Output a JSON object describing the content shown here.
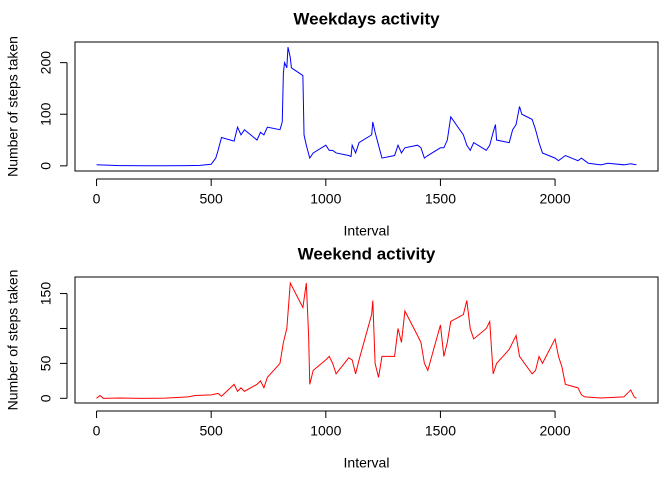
{
  "chart_data": [
    {
      "type": "line",
      "title": "Weekdays activity",
      "xlabel": "Interval",
      "ylabel": "Number of steps taken",
      "color": "#0000ff",
      "x": [
        0,
        100,
        200,
        300,
        400,
        450,
        500,
        520,
        530,
        545,
        600,
        615,
        630,
        645,
        700,
        715,
        730,
        745,
        800,
        810,
        815,
        820,
        830,
        835,
        845,
        850,
        900,
        905,
        915,
        930,
        945,
        1000,
        1015,
        1030,
        1045,
        1100,
        1110,
        1115,
        1130,
        1145,
        1200,
        1205,
        1215,
        1230,
        1245,
        1300,
        1315,
        1330,
        1345,
        1400,
        1415,
        1430,
        1445,
        1500,
        1515,
        1530,
        1545,
        1600,
        1615,
        1630,
        1645,
        1700,
        1715,
        1730,
        1740,
        1745,
        1800,
        1815,
        1830,
        1845,
        1855,
        1900,
        1915,
        1930,
        1945,
        2000,
        2015,
        2030,
        2045,
        2100,
        2115,
        2130,
        2145,
        2200,
        2230,
        2300,
        2330,
        2355
      ],
      "values": [
        2,
        0.5,
        0.3,
        0.1,
        0.5,
        1,
        3,
        15,
        30,
        55,
        48,
        75,
        60,
        70,
        50,
        65,
        60,
        75,
        70,
        85,
        180,
        200,
        190,
        230,
        210,
        190,
        175,
        60,
        40,
        15,
        25,
        40,
        30,
        30,
        25,
        20,
        18,
        40,
        25,
        45,
        60,
        85,
        65,
        40,
        15,
        20,
        40,
        25,
        35,
        40,
        35,
        15,
        20,
        35,
        35,
        50,
        95,
        60,
        40,
        30,
        45,
        30,
        40,
        65,
        80,
        50,
        45,
        70,
        80,
        115,
        100,
        90,
        70,
        45,
        25,
        15,
        10,
        15,
        20,
        10,
        15,
        10,
        5,
        2,
        5,
        2,
        4,
        2
      ],
      "xlim": [
        -94,
        2449
      ],
      "ylim": [
        -10,
        240
      ],
      "xticks": [
        0,
        500,
        1000,
        1500,
        2000
      ],
      "yticks": [
        0,
        100,
        200
      ]
    },
    {
      "type": "line",
      "title": "Weekend activity",
      "xlabel": "Interval",
      "ylabel": "Number of steps taken",
      "color": "#ff0000",
      "x": [
        0,
        15,
        30,
        100,
        200,
        300,
        400,
        430,
        500,
        530,
        545,
        600,
        615,
        630,
        645,
        700,
        715,
        730,
        745,
        800,
        815,
        830,
        845,
        900,
        915,
        925,
        930,
        945,
        1000,
        1015,
        1030,
        1045,
        1100,
        1115,
        1130,
        1145,
        1200,
        1205,
        1215,
        1230,
        1245,
        1300,
        1315,
        1330,
        1345,
        1400,
        1415,
        1430,
        1445,
        1500,
        1515,
        1530,
        1545,
        1600,
        1615,
        1630,
        1645,
        1700,
        1715,
        1730,
        1745,
        1800,
        1815,
        1830,
        1845,
        1900,
        1915,
        1930,
        1945,
        2000,
        2015,
        2030,
        2045,
        2100,
        2115,
        2130,
        2200,
        2300,
        2330,
        2345,
        2355
      ],
      "values": [
        0,
        4,
        0,
        0.5,
        0,
        0.3,
        2,
        4,
        5,
        7,
        3,
        20,
        10,
        15,
        10,
        20,
        25,
        15,
        30,
        50,
        80,
        100,
        165,
        130,
        165,
        90,
        20,
        40,
        55,
        60,
        50,
        35,
        58,
        55,
        35,
        55,
        120,
        140,
        50,
        30,
        60,
        60,
        100,
        80,
        125,
        90,
        80,
        50,
        40,
        105,
        60,
        80,
        110,
        120,
        140,
        100,
        85,
        100,
        110,
        35,
        50,
        70,
        80,
        90,
        60,
        35,
        40,
        60,
        50,
        85,
        60,
        45,
        20,
        15,
        5,
        2,
        0.5,
        2,
        12,
        2,
        0
      ],
      "xlim": [
        -94,
        2449
      ],
      "ylim": [
        -6.7,
        173.7
      ],
      "xticks": [
        0,
        500,
        1000,
        1500,
        2000
      ],
      "yticks": [
        0,
        50,
        {
          "value": 100,
          "label": null
        },
        150
      ]
    }
  ]
}
